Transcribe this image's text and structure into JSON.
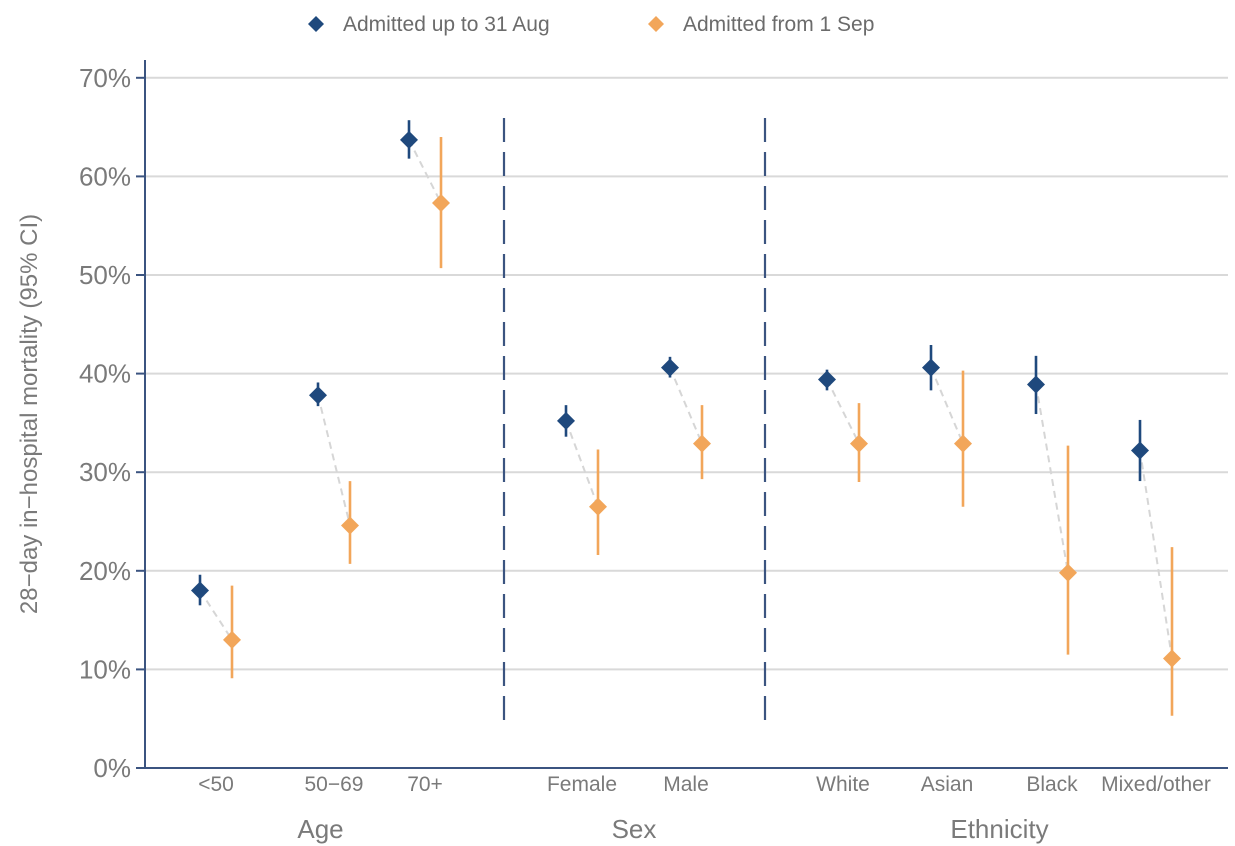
{
  "chart_data": {
    "type": "scatter",
    "ylabel": "28−day in−hospital mortality (95% CI)",
    "xlabel": "",
    "ylim": [
      0,
      70
    ],
    "yticks": [
      "0%",
      "10%",
      "20%",
      "30%",
      "40%",
      "50%",
      "60%",
      "70%"
    ],
    "grid": "horizontal",
    "legend_position": "top",
    "series": [
      {
        "name": "Admitted up to 31 Aug",
        "color": "#1f497d",
        "marker": "diamond"
      },
      {
        "name": "Admitted from 1 Sep",
        "color": "#f2a65a",
        "marker": "diamond"
      }
    ],
    "connector_color": "#d6d6d6",
    "separator_color": "#3b5480",
    "groups": [
      {
        "label": "Age",
        "categories": [
          {
            "label": "<50",
            "series": [
              {
                "value": 18.0,
                "lower": 16.5,
                "upper": 19.6
              },
              {
                "value": 13.0,
                "lower": 9.1,
                "upper": 18.5
              }
            ]
          },
          {
            "label": "50−69",
            "series": [
              {
                "value": 37.8,
                "lower": 36.7,
                "upper": 39.1
              },
              {
                "value": 24.6,
                "lower": 20.7,
                "upper": 29.1
              }
            ]
          },
          {
            "label": "70+",
            "series": [
              {
                "value": 63.7,
                "lower": 61.8,
                "upper": 65.7
              },
              {
                "value": 57.3,
                "lower": 50.7,
                "upper": 64.0
              }
            ]
          }
        ]
      },
      {
        "label": "Sex",
        "categories": [
          {
            "label": "Female",
            "series": [
              {
                "value": 35.2,
                "lower": 33.6,
                "upper": 36.8
              },
              {
                "value": 26.5,
                "lower": 21.6,
                "upper": 32.3
              }
            ]
          },
          {
            "label": "Male",
            "series": [
              {
                "value": 40.6,
                "lower": 39.6,
                "upper": 41.7
              },
              {
                "value": 32.9,
                "lower": 29.3,
                "upper": 36.8
              }
            ]
          }
        ]
      },
      {
        "label": "Ethnicity",
        "categories": [
          {
            "label": "White",
            "series": [
              {
                "value": 39.4,
                "lower": 38.3,
                "upper": 40.4
              },
              {
                "value": 32.9,
                "lower": 29.0,
                "upper": 37.0
              }
            ]
          },
          {
            "label": "Asian",
            "series": [
              {
                "value": 40.6,
                "lower": 38.3,
                "upper": 42.9
              },
              {
                "value": 32.9,
                "lower": 26.5,
                "upper": 40.3
              }
            ]
          },
          {
            "label": "Black",
            "series": [
              {
                "value": 38.9,
                "lower": 35.9,
                "upper": 41.8
              },
              {
                "value": 19.8,
                "lower": 11.5,
                "upper": 32.7
              }
            ]
          },
          {
            "label": "Mixed/other",
            "series": [
              {
                "value": 32.2,
                "lower": 29.1,
                "upper": 35.3
              },
              {
                "value": 11.1,
                "lower": 5.3,
                "upper": 22.4
              }
            ]
          }
        ]
      }
    ]
  }
}
